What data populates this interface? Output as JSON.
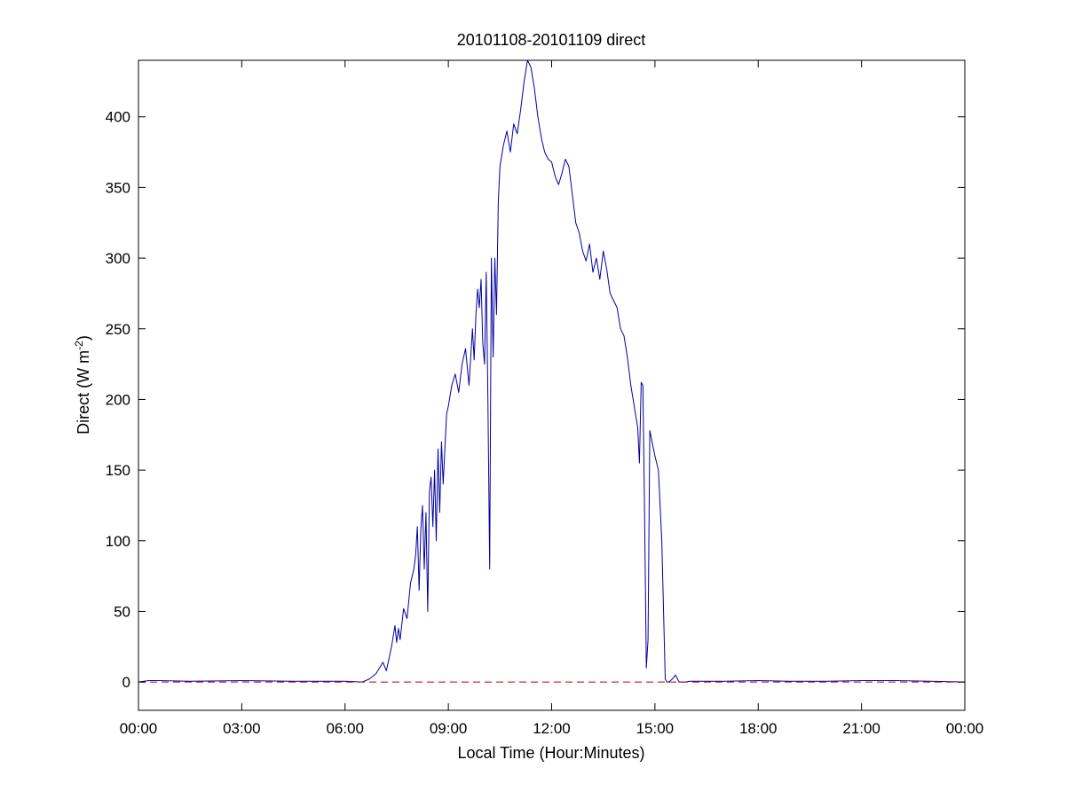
{
  "chart_data": {
    "type": "line",
    "title": "20101108-20101109 direct",
    "xlabel": "Local Time (Hour:Minutes)",
    "ylabel": {
      "prefix": "Direct (W m",
      "superscript": "-2",
      "suffix": ")"
    },
    "xlim": [
      0,
      24
    ],
    "ylim": [
      -20,
      440
    ],
    "x_unit": "hours since 00:00 local time",
    "xticks": [
      {
        "value": 0,
        "label": "00:00"
      },
      {
        "value": 3,
        "label": "03:00"
      },
      {
        "value": 6,
        "label": "06:00"
      },
      {
        "value": 9,
        "label": "09:00"
      },
      {
        "value": 12,
        "label": "12:00"
      },
      {
        "value": 15,
        "label": "15:00"
      },
      {
        "value": 18,
        "label": "18:00"
      },
      {
        "value": 21,
        "label": "21:00"
      },
      {
        "value": 24,
        "label": "00:00"
      }
    ],
    "yticks": [
      {
        "value": 0,
        "label": "0"
      },
      {
        "value": 50,
        "label": "50"
      },
      {
        "value": 100,
        "label": "100"
      },
      {
        "value": 150,
        "label": "150"
      },
      {
        "value": 200,
        "label": "200"
      },
      {
        "value": 250,
        "label": "250"
      },
      {
        "value": 300,
        "label": "300"
      },
      {
        "value": 350,
        "label": "350"
      },
      {
        "value": 400,
        "label": "400"
      }
    ],
    "grid": false,
    "series": [
      {
        "style": "solid",
        "color": "#0000a0",
        "x": [
          0,
          0.3,
          0.6,
          1.5,
          3,
          4.5,
          6,
          6.5,
          6.7,
          6.9,
          7.1,
          7.2,
          7.35,
          7.45,
          7.5,
          7.55,
          7.6,
          7.7,
          7.8,
          7.9,
          8.0,
          8.05,
          8.1,
          8.15,
          8.2,
          8.25,
          8.3,
          8.35,
          8.4,
          8.45,
          8.5,
          8.55,
          8.6,
          8.65,
          8.7,
          8.75,
          8.8,
          8.85,
          8.9,
          8.95,
          9.0,
          9.1,
          9.2,
          9.3,
          9.4,
          9.5,
          9.6,
          9.7,
          9.75,
          9.8,
          9.85,
          9.9,
          9.95,
          10.0,
          10.05,
          10.1,
          10.15,
          10.2,
          10.25,
          10.3,
          10.35,
          10.4,
          10.45,
          10.5,
          10.6,
          10.7,
          10.8,
          10.9,
          11.0,
          11.1,
          11.2,
          11.3,
          11.4,
          11.5,
          11.6,
          11.7,
          11.8,
          11.9,
          12.0,
          12.1,
          12.2,
          12.3,
          12.4,
          12.5,
          12.6,
          12.7,
          12.8,
          12.9,
          13.0,
          13.1,
          13.2,
          13.3,
          13.4,
          13.5,
          13.6,
          13.7,
          13.8,
          13.9,
          14.0,
          14.1,
          14.2,
          14.3,
          14.4,
          14.5,
          14.55,
          14.6,
          14.65,
          14.7,
          14.75,
          14.8,
          14.85,
          14.9,
          15.0,
          15.1,
          15.2,
          15.3,
          15.35,
          15.4,
          15.5,
          15.6,
          15.7,
          15.75,
          15.8,
          15.9,
          16,
          17,
          18,
          19,
          20,
          21,
          22,
          23,
          24
        ],
        "values": [
          0,
          1,
          1,
          0.5,
          1,
          0.5,
          0.5,
          0,
          2,
          6,
          14,
          8,
          25,
          40,
          28,
          38,
          30,
          52,
          45,
          70,
          80,
          90,
          110,
          65,
          108,
          125,
          80,
          120,
          50,
          135,
          145,
          110,
          150,
          100,
          165,
          120,
          170,
          140,
          165,
          190,
          195,
          210,
          218,
          205,
          225,
          236,
          210,
          250,
          228,
          260,
          278,
          265,
          285,
          240,
          225,
          290,
          200,
          80,
          300,
          230,
          300,
          260,
          340,
          365,
          380,
          390,
          375,
          395,
          388,
          405,
          425,
          440,
          435,
          420,
          400,
          385,
          375,
          370,
          368,
          358,
          352,
          360,
          370,
          365,
          345,
          325,
          318,
          305,
          298,
          310,
          290,
          300,
          285,
          305,
          292,
          275,
          270,
          265,
          250,
          245,
          230,
          210,
          195,
          180,
          155,
          212,
          210,
          120,
          10,
          30,
          178,
          172,
          160,
          150,
          100,
          2,
          0,
          0,
          2,
          5,
          0,
          0,
          0,
          0,
          0.5,
          0.5,
          1,
          0.5,
          0.5,
          1,
          1,
          0.5,
          0
        ]
      },
      {
        "style": "dashed",
        "color": "#c00000",
        "x": [
          0,
          24
        ],
        "values": [
          0,
          0
        ]
      }
    ]
  }
}
